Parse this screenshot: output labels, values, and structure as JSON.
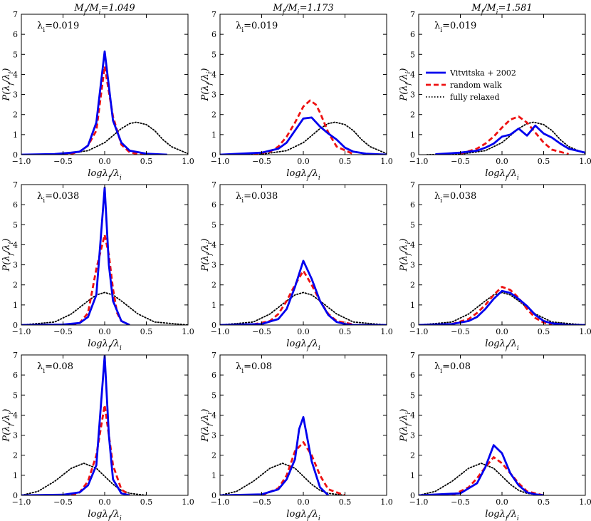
{
  "figure": {
    "column_titles": [
      "M_f/M_i=1.049",
      "M_f/M_i=1.173",
      "M_f/M_i=1.581"
    ],
    "row_labels": [
      "λ_i=0.019",
      "λ_i=0.038",
      "λ_i=0.08"
    ],
    "xlabel": "logλ_f/λ_i",
    "ylabel": "P(λ_f/λ_i)",
    "legend": {
      "items": [
        "Vitvitska + 2002",
        "random walk",
        "fully relaxed"
      ],
      "colors": [
        "#0000ee",
        "#ee1111",
        "#000000"
      ]
    }
  },
  "chart_data": {
    "type": "line",
    "layout": "3x3 grid of line plots",
    "xlim": [
      -1.0,
      1.0
    ],
    "ylim": [
      0,
      7
    ],
    "xticks": [
      -1.0,
      -0.5,
      0.0,
      0.5,
      1.0
    ],
    "xtick_labels": [
      "−1.0",
      "−0.5",
      "0.0",
      "0.5",
      "1.0"
    ],
    "yticks": [
      0,
      1,
      2,
      3,
      4,
      5,
      6,
      7
    ],
    "legend_placement": "right (top-right panel)",
    "series_styles": {
      "vitvitska": {
        "name": "Vitvitska + 2002",
        "color": "#0000ee",
        "style": "solid"
      },
      "random_walk": {
        "name": "random walk",
        "color": "#ee1111",
        "style": "dashed"
      },
      "fully_relaxed": {
        "name": "fully relaxed",
        "color": "#000000",
        "style": "dotted"
      }
    },
    "panels": [
      {
        "row": 0,
        "col": 0,
        "vitvitska": {
          "x": [
            -1.0,
            -0.6,
            -0.4,
            -0.3,
            -0.2,
            -0.1,
            0.0,
            0.1,
            0.2,
            0.3,
            0.5,
            0.75
          ],
          "y": [
            0,
            0.03,
            0.1,
            0.15,
            0.45,
            1.6,
            5.15,
            1.7,
            0.6,
            0.2,
            0.05,
            0
          ]
        },
        "random_walk": {
          "x": [
            -0.6,
            -0.4,
            -0.3,
            -0.2,
            -0.1,
            0.0,
            0.1,
            0.2,
            0.3,
            0.4,
            0.6
          ],
          "y": [
            0,
            0.05,
            0.15,
            0.45,
            1.2,
            4.4,
            1.9,
            0.5,
            0.12,
            0.03,
            0
          ]
        },
        "fully_relaxed": {
          "x": [
            -0.9,
            -0.5,
            -0.2,
            0.0,
            0.1,
            0.2,
            0.3,
            0.38,
            0.5,
            0.6,
            0.7,
            0.8,
            1.0
          ],
          "y": [
            0,
            0.02,
            0.2,
            0.6,
            0.95,
            1.3,
            1.55,
            1.62,
            1.5,
            1.2,
            0.75,
            0.4,
            0.05
          ]
        }
      },
      {
        "row": 0,
        "col": 1,
        "vitvitska": {
          "x": [
            -1.0,
            -0.5,
            -0.3,
            -0.2,
            -0.1,
            0.0,
            0.1,
            0.2,
            0.3,
            0.4,
            0.5,
            0.6,
            0.75,
            1.0
          ],
          "y": [
            0,
            0.1,
            0.3,
            0.6,
            1.2,
            1.8,
            1.85,
            1.4,
            1.05,
            0.75,
            0.35,
            0.15,
            0.05,
            0
          ]
        },
        "random_walk": {
          "x": [
            -0.6,
            -0.4,
            -0.3,
            -0.2,
            -0.1,
            0.0,
            0.08,
            0.15,
            0.2,
            0.3,
            0.4,
            0.6
          ],
          "y": [
            0.02,
            0.15,
            0.4,
            0.9,
            1.6,
            2.4,
            2.7,
            2.5,
            2.1,
            1.1,
            0.4,
            0.03
          ]
        },
        "fully_relaxed": {
          "x": [
            -0.9,
            -0.5,
            -0.2,
            0.0,
            0.1,
            0.2,
            0.3,
            0.38,
            0.5,
            0.6,
            0.7,
            0.8,
            1.0
          ],
          "y": [
            0,
            0.02,
            0.2,
            0.6,
            0.95,
            1.3,
            1.55,
            1.62,
            1.5,
            1.2,
            0.75,
            0.4,
            0.05
          ]
        }
      },
      {
        "row": 0,
        "col": 2,
        "vitvitska": {
          "x": [
            -0.8,
            -0.5,
            -0.3,
            -0.2,
            -0.1,
            0.0,
            0.1,
            0.2,
            0.3,
            0.4,
            0.5,
            0.6,
            0.7,
            0.8,
            1.0
          ],
          "y": [
            0.02,
            0.1,
            0.2,
            0.35,
            0.55,
            0.9,
            1.0,
            1.3,
            0.95,
            1.45,
            1.05,
            0.85,
            0.55,
            0.3,
            0.1
          ]
        },
        "random_walk": {
          "x": [
            -0.5,
            -0.3,
            -0.2,
            -0.1,
            0.0,
            0.1,
            0.2,
            0.3,
            0.4,
            0.5,
            0.6,
            0.8
          ],
          "y": [
            0.05,
            0.3,
            0.55,
            0.9,
            1.35,
            1.75,
            1.9,
            1.6,
            1.1,
            0.6,
            0.25,
            0.03
          ]
        },
        "fully_relaxed": {
          "x": [
            -0.9,
            -0.5,
            -0.2,
            0.0,
            0.1,
            0.2,
            0.3,
            0.38,
            0.5,
            0.6,
            0.7,
            0.8,
            1.0
          ],
          "y": [
            0,
            0.02,
            0.2,
            0.6,
            0.95,
            1.3,
            1.55,
            1.62,
            1.5,
            1.2,
            0.75,
            0.4,
            0.05
          ]
        }
      },
      {
        "row": 1,
        "col": 0,
        "vitvitska": {
          "x": [
            -1.0,
            -0.5,
            -0.3,
            -0.2,
            -0.1,
            0.0,
            0.05,
            0.1,
            0.2,
            0.3
          ],
          "y": [
            0,
            0.02,
            0.1,
            0.4,
            1.5,
            6.85,
            3.0,
            1.2,
            0.2,
            0
          ]
        },
        "random_walk": {
          "x": [
            -0.4,
            -0.3,
            -0.2,
            -0.1,
            0.0,
            0.05,
            0.1,
            0.15,
            0.2,
            0.3
          ],
          "y": [
            0,
            0.1,
            0.6,
            2.8,
            4.5,
            3.5,
            1.8,
            0.6,
            0.2,
            0
          ]
        },
        "fully_relaxed": {
          "x": [
            -1.0,
            -0.6,
            -0.4,
            -0.2,
            -0.1,
            0.0,
            0.1,
            0.2,
            0.4,
            0.6,
            1.0
          ],
          "y": [
            0,
            0.15,
            0.55,
            1.2,
            1.5,
            1.62,
            1.5,
            1.2,
            0.55,
            0.15,
            0
          ]
        }
      },
      {
        "row": 1,
        "col": 1,
        "vitvitska": {
          "x": [
            -1.0,
            -0.5,
            -0.3,
            -0.2,
            -0.1,
            0.0,
            0.1,
            0.2,
            0.3,
            0.4,
            0.5,
            0.6,
            1.0
          ],
          "y": [
            0,
            0.05,
            0.3,
            0.8,
            1.9,
            3.2,
            2.3,
            1.2,
            0.5,
            0.15,
            0.05,
            0,
            0
          ]
        },
        "random_walk": {
          "x": [
            -0.6,
            -0.4,
            -0.3,
            -0.2,
            -0.1,
            0.0,
            0.1,
            0.2,
            0.3,
            0.4,
            0.6
          ],
          "y": [
            0.03,
            0.2,
            0.55,
            1.2,
            2.0,
            2.7,
            2.0,
            1.2,
            0.55,
            0.2,
            0.03
          ]
        },
        "fully_relaxed": {
          "x": [
            -1.0,
            -0.6,
            -0.4,
            -0.2,
            -0.1,
            0.0,
            0.1,
            0.2,
            0.4,
            0.6,
            1.0
          ],
          "y": [
            0,
            0.15,
            0.55,
            1.2,
            1.5,
            1.62,
            1.5,
            1.2,
            0.55,
            0.15,
            0
          ]
        }
      },
      {
        "row": 1,
        "col": 2,
        "vitvitska": {
          "x": [
            -1.0,
            -0.6,
            -0.4,
            -0.3,
            -0.2,
            -0.1,
            0.0,
            0.1,
            0.2,
            0.3,
            0.4,
            0.5,
            0.6,
            0.8,
            1.0
          ],
          "y": [
            0,
            0.05,
            0.2,
            0.4,
            0.8,
            1.3,
            1.7,
            1.6,
            1.3,
            0.95,
            0.5,
            0.2,
            0.08,
            0,
            0
          ]
        },
        "random_walk": {
          "x": [
            -0.6,
            -0.4,
            -0.3,
            -0.2,
            -0.1,
            0.0,
            0.1,
            0.2,
            0.3,
            0.4,
            0.5,
            0.6
          ],
          "y": [
            0.05,
            0.3,
            0.6,
            1.0,
            1.5,
            1.9,
            1.75,
            1.35,
            0.8,
            0.35,
            0.12,
            0.03
          ]
        },
        "fully_relaxed": {
          "x": [
            -1.0,
            -0.6,
            -0.4,
            -0.2,
            -0.1,
            0.0,
            0.1,
            0.2,
            0.4,
            0.6,
            1.0
          ],
          "y": [
            0,
            0.15,
            0.55,
            1.2,
            1.5,
            1.62,
            1.5,
            1.2,
            0.55,
            0.15,
            0
          ]
        }
      },
      {
        "row": 2,
        "col": 0,
        "vitvitska": {
          "x": [
            -1.0,
            -0.5,
            -0.3,
            -0.2,
            -0.1,
            0.0,
            0.05,
            0.1,
            0.2,
            0.3
          ],
          "y": [
            0,
            0.03,
            0.15,
            0.5,
            1.5,
            6.95,
            3.0,
            0.8,
            0.1,
            0
          ]
        },
        "random_walk": {
          "x": [
            -0.4,
            -0.3,
            -0.2,
            -0.1,
            0.0,
            0.05,
            0.1,
            0.2,
            0.3
          ],
          "y": [
            0,
            0.15,
            0.7,
            2.0,
            4.5,
            3.0,
            1.5,
            0.3,
            0
          ]
        },
        "fully_relaxed": {
          "x": [
            -1.0,
            -0.8,
            -0.6,
            -0.4,
            -0.25,
            -0.1,
            0.0,
            0.1,
            0.2,
            0.3,
            0.5
          ],
          "y": [
            0,
            0.2,
            0.7,
            1.35,
            1.6,
            1.35,
            0.95,
            0.55,
            0.25,
            0.1,
            0
          ]
        }
      },
      {
        "row": 2,
        "col": 1,
        "vitvitska": {
          "x": [
            -1.0,
            -0.5,
            -0.3,
            -0.2,
            -0.1,
            -0.05,
            0.0,
            0.1,
            0.2,
            0.3
          ],
          "y": [
            0,
            0.05,
            0.3,
            0.8,
            1.8,
            3.3,
            3.9,
            1.7,
            0.4,
            0
          ]
        },
        "random_walk": {
          "x": [
            -0.5,
            -0.3,
            -0.2,
            -0.1,
            0.0,
            0.1,
            0.2,
            0.3,
            0.5
          ],
          "y": [
            0,
            0.35,
            1.0,
            2.2,
            2.65,
            2.0,
            1.0,
            0.3,
            0
          ]
        },
        "fully_relaxed": {
          "x": [
            -1.0,
            -0.8,
            -0.6,
            -0.4,
            -0.25,
            -0.1,
            0.0,
            0.1,
            0.2,
            0.3,
            0.5
          ],
          "y": [
            0,
            0.2,
            0.7,
            1.35,
            1.6,
            1.35,
            0.95,
            0.55,
            0.25,
            0.1,
            0
          ]
        }
      },
      {
        "row": 2,
        "col": 2,
        "vitvitska": {
          "x": [
            -1.0,
            -0.5,
            -0.3,
            -0.2,
            -0.1,
            0.0,
            0.1,
            0.2,
            0.3,
            0.4,
            0.5
          ],
          "y": [
            0,
            0.1,
            0.6,
            1.4,
            2.5,
            2.1,
            1.1,
            0.5,
            0.15,
            0.05,
            0
          ]
        },
        "random_walk": {
          "x": [
            -0.6,
            -0.4,
            -0.3,
            -0.2,
            -0.1,
            0.0,
            0.1,
            0.2,
            0.3,
            0.5
          ],
          "y": [
            0,
            0.4,
            0.85,
            1.4,
            1.9,
            1.6,
            1.1,
            0.6,
            0.2,
            0
          ]
        },
        "fully_relaxed": {
          "x": [
            -1.0,
            -0.8,
            -0.6,
            -0.4,
            -0.25,
            -0.1,
            0.0,
            0.1,
            0.2,
            0.3,
            0.5
          ],
          "y": [
            0,
            0.2,
            0.7,
            1.35,
            1.6,
            1.35,
            0.95,
            0.55,
            0.25,
            0.1,
            0
          ]
        }
      }
    ]
  }
}
